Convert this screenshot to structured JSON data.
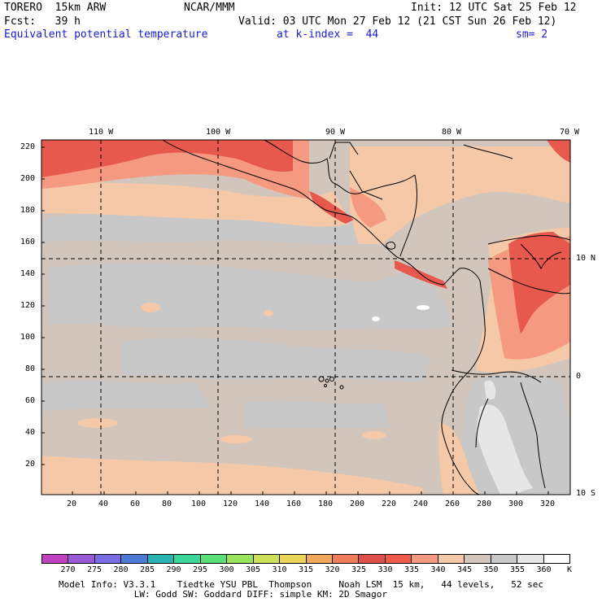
{
  "header": {
    "model": "TORERO  15km ARW",
    "center": "NCAR/MMM",
    "init": "Init: 12 UTC Sat 25 Feb 12",
    "fcst": "Fcst:   39 h",
    "valid": "Valid: 03 UTC Mon 27 Feb 12 (21 CST Sun 26 Feb 12)",
    "field": "Equivalent potential temperature",
    "kindex": "at k-index =  44",
    "smooth": "sm= 2"
  },
  "map": {
    "lon_labels": [
      "110 W",
      "100 W",
      "90 W",
      "80 W",
      "70 W"
    ],
    "lat_labels": [
      "10 N",
      "0",
      "10 S"
    ],
    "y_ticks": [
      "220",
      "200",
      "180",
      "160",
      "140",
      "120",
      "100",
      "80",
      "60",
      "40",
      "20"
    ],
    "x_ticks": [
      "20",
      "40",
      "60",
      "80",
      "100",
      "120",
      "140",
      "160",
      "180",
      "200",
      "220",
      "240",
      "260",
      "280",
      "300",
      "320"
    ]
  },
  "colorbar": {
    "labels": [
      "270",
      "275",
      "280",
      "285",
      "290",
      "295",
      "300",
      "305",
      "310",
      "315",
      "320",
      "325",
      "330",
      "335",
      "340",
      "345",
      "350",
      "355",
      "360"
    ],
    "unit": "K",
    "colors": [
      "#c040c0",
      "#9a5ad6",
      "#7a6ee6",
      "#4a7ad6",
      "#2ab4b4",
      "#3ad69a",
      "#5ae07a",
      "#9ae65a",
      "#cce05a",
      "#ecd65a",
      "#f2a85a",
      "#f07e5a",
      "#e0504a",
      "#f05a4a",
      "#f59a80",
      "#f5c8a8",
      "#d2c6bc",
      "#c8c8c8",
      "#e6e6e6",
      "#ffffff"
    ]
  },
  "footer": {
    "line1": "Model Info: V3.3.1    Tiedtke YSU PBL  Thompson     Noah LSM  15 km,   44 levels,   52 sec",
    "line2": "              LW: Godd SW: Goddard DIFF: simple KM: 2D Smagor"
  }
}
